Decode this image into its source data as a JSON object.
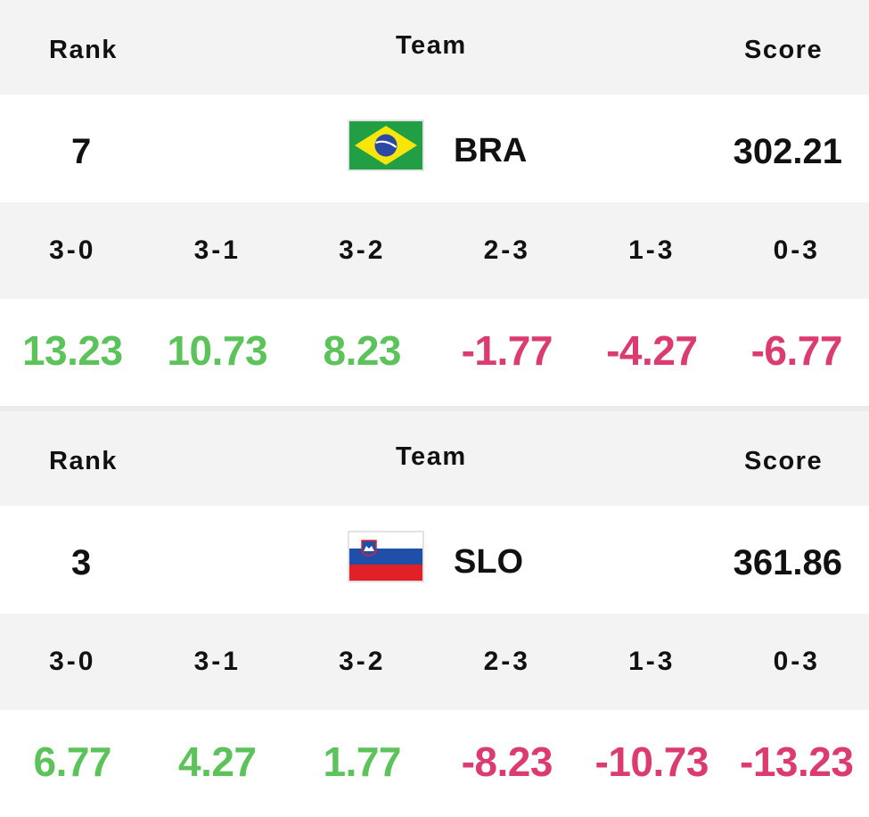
{
  "tables": [
    {
      "header": {
        "rank": "Rank",
        "team": "Team",
        "score": "Score"
      },
      "rank": "7",
      "team_code": "BRA",
      "flag_icon": "brazil-flag-icon",
      "score": "302.21",
      "outcomes": [
        "3-0",
        "3-1",
        "3-2",
        "2-3",
        "1-3",
        "0-3"
      ],
      "deltas": [
        "13.23",
        "10.73",
        "8.23",
        "-1.77",
        "-4.27",
        "-6.77"
      ]
    },
    {
      "header": {
        "rank": "Rank",
        "team": "Team",
        "score": "Score"
      },
      "rank": "3",
      "team_code": "SLO",
      "flag_icon": "slovenia-flag-icon",
      "score": "361.86",
      "outcomes": [
        "3-0",
        "3-1",
        "3-2",
        "2-3",
        "1-3",
        "0-3"
      ],
      "deltas": [
        "6.77",
        "4.27",
        "1.77",
        "-8.23",
        "-10.73",
        "-13.23"
      ]
    }
  ],
  "colors": {
    "positive": "#5cc35a",
    "negative": "#dc3b70",
    "header_bg": "#f3f3f3"
  }
}
